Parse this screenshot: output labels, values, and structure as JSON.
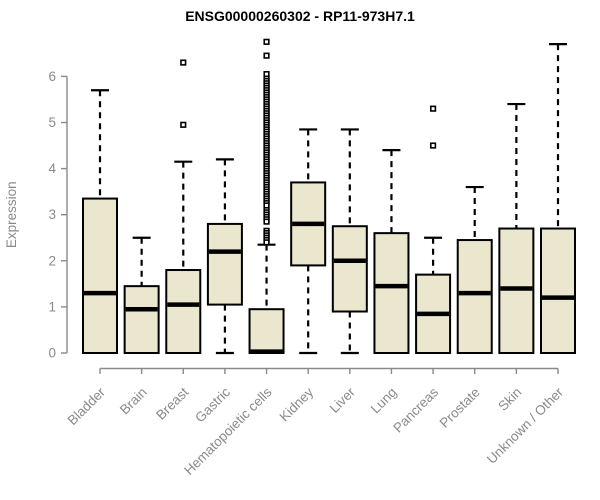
{
  "chart_data": {
    "type": "boxplot",
    "title": "ENSG00000260302 - RP11-973H7.1",
    "xlabel": "",
    "ylabel": "Expression",
    "ylim": [
      -0.2,
      7.0
    ],
    "yticks": [
      0,
      1,
      2,
      3,
      4,
      5,
      6
    ],
    "grid": false,
    "legend": "none",
    "categories": [
      "Bladder",
      "Brain",
      "Breast",
      "Gastric",
      "Hematopoietic cells",
      "Kidney",
      "Liver",
      "Lung",
      "Pancreas",
      "Prostate",
      "Skin",
      "Unknown / Other"
    ],
    "boxes": [
      {
        "category": "Bladder",
        "whisker_low": 0,
        "q1": 0,
        "median": 1.3,
        "q3": 3.35,
        "whisker_high": 5.7,
        "outliers": []
      },
      {
        "category": "Brain",
        "whisker_low": 0,
        "q1": 0,
        "median": 0.95,
        "q3": 1.45,
        "whisker_high": 2.5,
        "outliers": []
      },
      {
        "category": "Breast",
        "whisker_low": 0,
        "q1": 0,
        "median": 1.05,
        "q3": 1.8,
        "whisker_high": 4.15,
        "outliers": [
          6.3,
          4.95
        ]
      },
      {
        "category": "Gastric",
        "whisker_low": 0,
        "q1": 1.05,
        "median": 2.2,
        "q3": 2.8,
        "whisker_high": 4.2,
        "outliers": []
      },
      {
        "category": "Hematopoietic cells",
        "whisker_low": 0,
        "q1": 0,
        "median": 0.03,
        "q3": 0.95,
        "whisker_high": 2.35,
        "outliers": [
          6.75,
          6.45,
          6.05,
          5.95,
          5.9,
          5.85,
          5.8,
          5.75,
          5.7,
          5.65,
          5.6,
          5.55,
          5.5,
          5.45,
          5.4,
          5.35,
          5.3,
          5.25,
          5.2,
          5.15,
          5.1,
          5.05,
          5.0,
          4.95,
          4.9,
          4.85,
          4.8,
          4.75,
          4.7,
          4.65,
          4.6,
          4.55,
          4.5,
          4.45,
          4.4,
          4.35,
          4.3,
          4.25,
          4.2,
          4.15,
          4.1,
          4.05,
          4.0,
          3.95,
          3.9,
          3.85,
          3.8,
          3.75,
          3.7,
          3.65,
          3.6,
          3.55,
          3.5,
          3.45,
          3.4,
          3.35,
          3.3,
          3.25,
          3.2,
          3.1,
          3.05,
          3.0,
          2.95,
          2.9,
          2.85,
          2.65,
          2.6,
          2.55,
          2.5,
          2.45,
          2.4
        ]
      },
      {
        "category": "Kidney",
        "whisker_low": 0,
        "q1": 1.9,
        "median": 2.8,
        "q3": 3.7,
        "whisker_high": 4.85,
        "outliers": []
      },
      {
        "category": "Liver",
        "whisker_low": 0,
        "q1": 0.9,
        "median": 2.0,
        "q3": 2.75,
        "whisker_high": 4.85,
        "outliers": []
      },
      {
        "category": "Lung",
        "whisker_low": 0,
        "q1": 0,
        "median": 1.45,
        "q3": 2.6,
        "whisker_high": 4.4,
        "outliers": []
      },
      {
        "category": "Pancreas",
        "whisker_low": 0,
        "q1": 0,
        "median": 0.85,
        "q3": 1.7,
        "whisker_high": 2.5,
        "outliers": [
          5.3,
          4.5
        ]
      },
      {
        "category": "Prostate",
        "whisker_low": 0,
        "q1": 0,
        "median": 1.3,
        "q3": 2.45,
        "whisker_high": 3.6,
        "outliers": []
      },
      {
        "category": "Skin",
        "whisker_low": 0,
        "q1": 0,
        "median": 1.4,
        "q3": 2.7,
        "whisker_high": 5.4,
        "outliers": []
      },
      {
        "category": "Unknown / Other",
        "whisker_low": 0,
        "q1": 0,
        "median": 1.2,
        "q3": 2.7,
        "whisker_high": 6.7,
        "outliers": []
      }
    ],
    "colors": {
      "box_fill": "#EBE6CE",
      "box_border": "#000000",
      "median": "#000000",
      "whisker": "#000000",
      "outlier": "#000000",
      "axis": "#8A8A8A",
      "tick_label": "#8A8A8A",
      "title": "#000000",
      "background": "#FFFFFF"
    }
  }
}
